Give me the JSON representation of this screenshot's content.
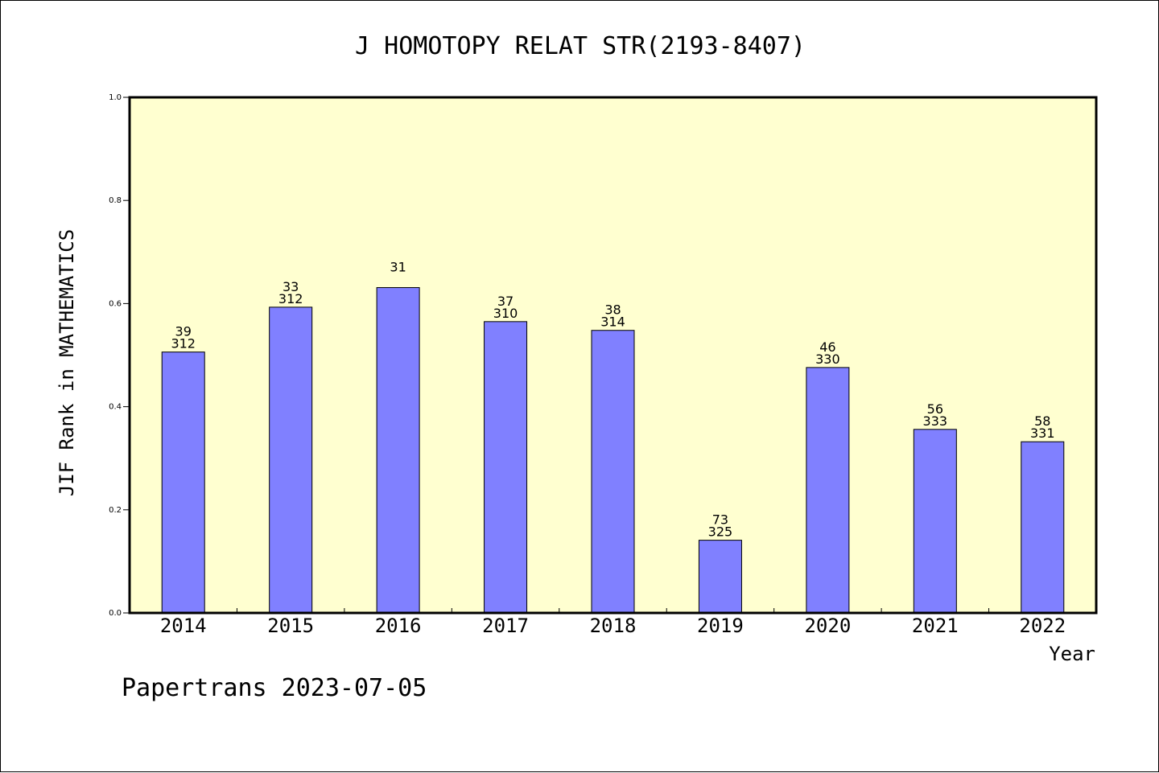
{
  "chart_data": {
    "type": "bar",
    "title": "J HOMOTOPY RELAT STR(2193-8407)",
    "xlabel": "Year",
    "ylabel": "JIF Rank in MATHEMATICS",
    "ylim": [
      0,
      1.0
    ],
    "yticks": [
      "0.0",
      "0.2",
      "0.4",
      "0.6",
      "0.8",
      "1.0"
    ],
    "categories": [
      "2014",
      "2015",
      "2016",
      "2017",
      "2018",
      "2019",
      "2020",
      "2021",
      "2022"
    ],
    "values": [
      0.506,
      0.593,
      0.631,
      0.565,
      0.548,
      0.141,
      0.476,
      0.356,
      0.332
    ],
    "rank": [
      "39",
      "33",
      "31",
      "37",
      "38",
      "73",
      "46",
      "56",
      "58"
    ],
    "total": [
      "312",
      "312",
      "",
      "310",
      "314",
      "325",
      "330",
      "333",
      "331"
    ],
    "bar_color": "#8080ff",
    "plot_bg": "#ffffd0",
    "grid": false
  },
  "footer": "Papertrans 2023-07-05"
}
